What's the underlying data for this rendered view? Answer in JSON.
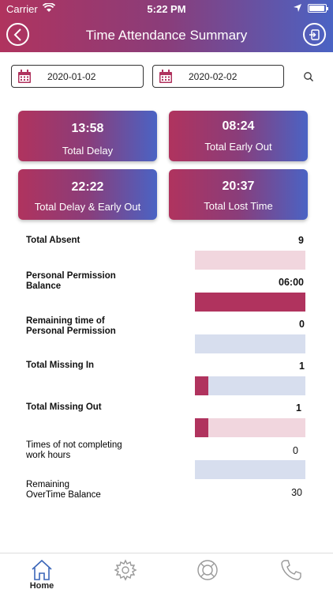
{
  "status_bar": {
    "carrier": "Carrier",
    "time": "5:22 PM"
  },
  "header": {
    "title": "Time Attendance Summary",
    "back_icon": "chevron-left-icon",
    "logout_icon": "logout-icon"
  },
  "filters": {
    "from_date": "2020-01-02",
    "to_date": "2020-02-02",
    "search_icon": "search-icon"
  },
  "cards": [
    {
      "value": "13:58",
      "label": "Total Delay"
    },
    {
      "value": "08:24",
      "label": "Total Early Out"
    },
    {
      "value": "22:22",
      "label": "Total Delay & Early Out"
    },
    {
      "value": "20:37",
      "label": "Total Lost Time"
    }
  ],
  "rows": [
    {
      "label": "Total Absent",
      "value": "9",
      "bar_color": "pink",
      "fill": 0
    },
    {
      "label": "Personal Permission Balance",
      "value": "06:00",
      "bar_color": "accent",
      "fill": 1
    },
    {
      "label": "Remaining time of Personal Permission",
      "value": "0",
      "bar_color": "blue",
      "fill": 0
    },
    {
      "label": "Total Missing In",
      "value": "1",
      "bar_color": "blue",
      "fill": 0.12
    },
    {
      "label": "Total Missing Out",
      "value": "1",
      "bar_color": "pink",
      "fill": 0.12
    },
    {
      "label": "Times of not completing work hours",
      "value": "0",
      "bar_color": "blue",
      "fill": 0
    },
    {
      "label": "Remaining OverTime Balance",
      "value": "30"
    }
  ],
  "tab_bar": {
    "items": [
      {
        "icon": "home-icon",
        "label": "Home",
        "active": true
      },
      {
        "icon": "gear-icon",
        "label": ""
      },
      {
        "icon": "lifebuoy-icon",
        "label": ""
      },
      {
        "icon": "phone-icon",
        "label": ""
      }
    ]
  },
  "colors": {
    "accent": "#b0335e",
    "gradient_end": "#4a63c4",
    "bar_pink": "#f1d6de",
    "bar_blue": "#d7deee"
  }
}
